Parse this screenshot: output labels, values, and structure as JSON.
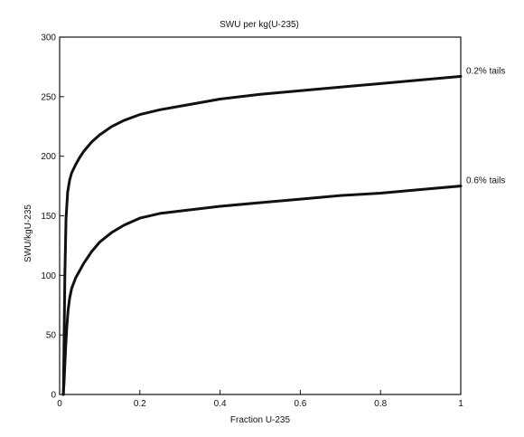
{
  "chart_data": {
    "type": "line",
    "title": "SWU per kg(U-235)",
    "xlabel": "Fraction U-235",
    "ylabel": "SWU/kgU-235",
    "xlim": [
      0,
      1
    ],
    "ylim": [
      0,
      300
    ],
    "xticks": [
      "0",
      "0.2",
      "0.4",
      "0.6",
      "0.8",
      "1"
    ],
    "yticks": [
      "0",
      "50",
      "100",
      "150",
      "200",
      "250",
      "300"
    ],
    "grid": false,
    "legend": "none",
    "series": [
      {
        "name": "0.2% tails",
        "x": [
          0.0095,
          0.013,
          0.016,
          0.02,
          0.025,
          0.03,
          0.04,
          0.05,
          0.06,
          0.08,
          0.1,
          0.13,
          0.16,
          0.2,
          0.25,
          0.3,
          0.4,
          0.5,
          0.6,
          0.7,
          0.8,
          0.9,
          1.0
        ],
        "y": [
          0,
          100,
          148,
          170,
          180,
          186,
          193,
          199,
          204,
          212,
          218,
          225,
          230,
          235,
          239,
          242,
          248,
          252,
          255,
          258,
          261,
          264,
          267
        ]
      },
      {
        "name": "0.6% tails",
        "x": [
          0.009,
          0.011,
          0.013,
          0.015,
          0.018,
          0.021,
          0.025,
          0.03,
          0.04,
          0.05,
          0.06,
          0.08,
          0.1,
          0.13,
          0.16,
          0.2,
          0.25,
          0.3,
          0.4,
          0.5,
          0.6,
          0.7,
          0.8,
          0.9,
          1.0
        ],
        "y": [
          0,
          10,
          25,
          40,
          57,
          70,
          81,
          89,
          98,
          104,
          110,
          120,
          128,
          136,
          142,
          148,
          152,
          154,
          158,
          161,
          164,
          167,
          169,
          172,
          175
        ]
      }
    ]
  }
}
